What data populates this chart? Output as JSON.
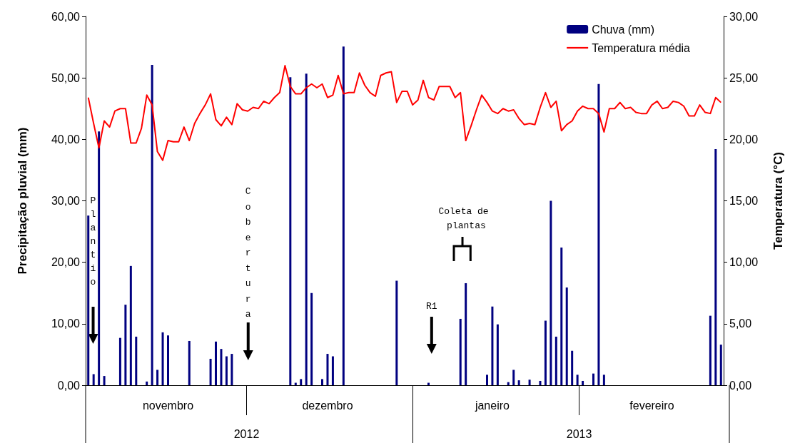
{
  "chart_data": {
    "type": "bar",
    "ylabel": "Precipitação pluvial (mm)",
    "y2label": "Temperatura (°C)",
    "categories": [
      null,
      null,
      null,
      null,
      null,
      null,
      null,
      null,
      null,
      null,
      null,
      null,
      null,
      null,
      null,
      "novembro",
      null,
      null,
      null,
      null,
      null,
      null,
      null,
      null,
      null,
      null,
      null,
      null,
      null,
      null,
      null,
      null,
      null,
      null,
      null,
      null,
      null,
      null,
      null,
      null,
      null,
      null,
      null,
      null,
      null,
      "dezembro",
      null,
      null,
      null,
      null,
      null,
      null,
      null,
      null,
      null,
      null,
      null,
      null,
      null,
      null,
      null,
      null,
      null,
      null,
      null,
      null,
      null,
      null,
      null,
      null,
      null,
      null,
      null,
      null,
      null,
      null,
      "janeiro",
      null,
      null,
      null,
      null,
      null,
      null,
      null,
      null,
      null,
      null,
      null,
      null,
      null,
      null,
      null,
      null,
      null,
      null,
      null,
      null,
      null,
      null,
      null,
      null,
      null,
      null,
      null,
      null,
      null,
      "fevereiro",
      null,
      null,
      null,
      null,
      null,
      null,
      null,
      null,
      null,
      null,
      null,
      null,
      null
    ],
    "series": [
      {
        "name": "Chuva (mm)",
        "color": "#000080",
        "values": [
          27.6,
          1.8,
          41.3,
          1.5,
          0,
          0,
          7.7,
          13.1,
          19.4,
          7.9,
          0,
          0.6,
          52.1,
          2.5,
          8.6,
          8.1,
          0,
          0,
          0,
          7.2,
          0,
          0,
          0,
          4.3,
          7.1,
          5.9,
          4.7,
          5.1,
          0,
          0,
          0,
          0,
          0,
          0,
          0,
          0,
          0,
          0,
          50.1,
          0.4,
          1.0,
          50.7,
          15.0,
          0,
          1.0,
          5.1,
          4.7,
          0,
          55.1,
          0,
          0,
          0,
          0,
          0,
          0,
          0,
          0,
          0,
          17.0,
          0,
          0,
          0,
          0,
          0,
          0.4,
          0,
          0,
          0,
          0,
          0,
          10.8,
          16.6,
          0,
          0,
          0,
          1.7,
          12.8,
          9.9,
          0,
          0.5,
          2.5,
          0.8,
          0,
          0.9,
          0,
          0.7,
          10.5,
          30.0,
          7.9,
          22.4,
          15.9,
          5.6,
          1.7,
          0.7,
          0,
          1.9,
          49.0,
          1.7,
          0,
          0,
          0,
          0,
          0,
          0,
          0,
          0,
          0,
          0,
          0,
          0,
          0,
          0,
          0,
          0,
          0,
          0,
          0,
          11.3,
          38.4,
          6.6
        ]
      },
      {
        "name": "Temperatura média",
        "type": "line",
        "axis": "y2",
        "color": "#ff0000",
        "values": [
          23.4,
          21.3,
          19.3,
          21.5,
          21.0,
          22.3,
          22.5,
          22.5,
          19.7,
          19.7,
          20.9,
          23.6,
          22.8,
          19.0,
          18.3,
          19.9,
          19.8,
          19.8,
          21.0,
          19.9,
          21.3,
          22.1,
          22.8,
          23.7,
          21.6,
          21.1,
          21.8,
          21.2,
          22.9,
          22.4,
          22.3,
          22.6,
          22.5,
          23.1,
          22.9,
          23.4,
          23.8,
          26.0,
          24.3,
          23.7,
          23.7,
          24.2,
          24.5,
          24.2,
          24.5,
          23.4,
          23.6,
          25.2,
          23.7,
          23.8,
          23.8,
          25.4,
          24.4,
          23.8,
          23.5,
          25.2,
          25.4,
          25.5,
          23.0,
          23.9,
          23.9,
          22.8,
          23.2,
          24.8,
          23.4,
          23.2,
          24.3,
          24.3,
          24.3,
          23.4,
          23.8,
          19.9,
          21.1,
          22.4,
          23.6,
          23.0,
          22.3,
          22.1,
          22.5,
          22.3,
          22.4,
          21.7,
          21.2,
          21.3,
          21.2,
          22.6,
          23.8,
          22.6,
          23.1,
          20.7,
          21.2,
          21.5,
          22.3,
          22.7,
          22.5,
          22.5,
          22.1,
          20.6,
          22.5,
          22.5,
          23.0,
          22.5,
          22.6,
          22.2,
          22.1,
          22.1,
          22.8,
          23.1,
          22.5,
          22.6,
          23.1,
          23.0,
          22.7,
          21.9,
          21.9,
          22.8,
          22.2,
          22.1,
          23.4,
          23.0
        ]
      }
    ],
    "ylim": [
      0,
      60
    ],
    "yticks": [
      {
        "value": 0,
        "label": "0,00"
      },
      {
        "value": 10,
        "label": "10,00"
      },
      {
        "value": 20,
        "label": "20,00"
      },
      {
        "value": 30,
        "label": "30,00"
      },
      {
        "value": 40,
        "label": "40,00"
      },
      {
        "value": 50,
        "label": "50,00"
      },
      {
        "value": 60,
        "label": "60,00"
      }
    ],
    "y2lim": [
      0,
      30
    ],
    "y2ticks": [
      {
        "value": 0,
        "label": "0,00"
      },
      {
        "value": 5,
        "label": "5,00"
      },
      {
        "value": 10,
        "label": "10,00"
      },
      {
        "value": 15,
        "label": "15,00"
      },
      {
        "value": 20,
        "label": "20,00"
      },
      {
        "value": 25,
        "label": "25,00"
      },
      {
        "value": 30,
        "label": "30,00"
      }
    ],
    "annotations": [
      "Plantio",
      "Cobertura",
      "R1",
      "Coleta de plantas",
      "2012",
      "2013"
    ],
    "grid": false,
    "legend": "top right",
    "marker": "none",
    "line_style": "solid"
  }
}
